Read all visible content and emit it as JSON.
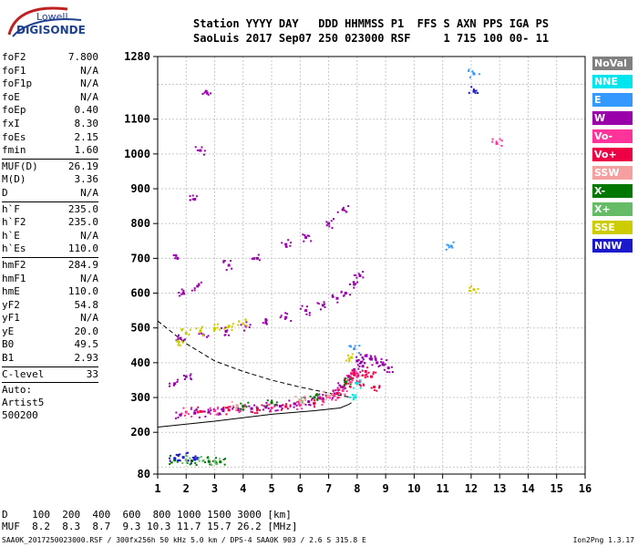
{
  "logo": {
    "line1": "Lowell",
    "line2": "DIGISONDE"
  },
  "header": {
    "line1": "Station YYYY DAY   DDD HHMMSS P1  FFS S AXN PPS IGA PS",
    "line2": "SaoLuis 2017 Sep07 250 023000 RSF     1 715 100 00- 11"
  },
  "params": [
    {
      "label": "foF2",
      "value": "7.800"
    },
    {
      "label": "foF1",
      "value": "N/A"
    },
    {
      "label": "foF1p",
      "value": "N/A"
    },
    {
      "label": "foE",
      "value": "N/A"
    },
    {
      "label": "foEp",
      "value": "0.40"
    },
    {
      "label": "fxI",
      "value": "8.30"
    },
    {
      "label": "foEs",
      "value": "2.15"
    },
    {
      "label": "fmin",
      "value": "1.60"
    },
    {
      "sep": true
    },
    {
      "label": "MUF(D)",
      "value": "26.19"
    },
    {
      "label": "M(D)",
      "value": "3.36"
    },
    {
      "label": "D",
      "value": "N/A"
    },
    {
      "sep": true
    },
    {
      "label": "h`F",
      "value": "235.0"
    },
    {
      "label": "h`F2",
      "value": "235.0"
    },
    {
      "label": "h`E",
      "value": "N/A"
    },
    {
      "label": "h`Es",
      "value": "110.0"
    },
    {
      "sep": true
    },
    {
      "label": "hmF2",
      "value": "284.9"
    },
    {
      "label": "hmF1",
      "value": "N/A"
    },
    {
      "label": "hmE",
      "value": "110.0"
    },
    {
      "label": "yF2",
      "value": "54.8"
    },
    {
      "label": "yF1",
      "value": "N/A"
    },
    {
      "label": "yE",
      "value": "20.0"
    },
    {
      "label": "B0",
      "value": "49.5"
    },
    {
      "label": "B1",
      "value": "2.93"
    },
    {
      "sep": true
    },
    {
      "label": "C-level",
      "value": "33"
    },
    {
      "sep": true
    }
  ],
  "auto": {
    "line1": "Auto:",
    "line2": "Artist5",
    "line3": "500200"
  },
  "legend": [
    {
      "label": "NoVal",
      "color": "#808080"
    },
    {
      "label": "NNE",
      "color": "#00e5ee"
    },
    {
      "label": "E",
      "color": "#3399ff"
    },
    {
      "label": "W",
      "color": "#9900aa"
    },
    {
      "label": "Vo-",
      "color": "#ff3399"
    },
    {
      "label": "Vo+",
      "color": "#ee0044"
    },
    {
      "label": "SSW",
      "color": "#f4a0a0"
    },
    {
      "label": "X-",
      "color": "#007700"
    },
    {
      "label": "X+",
      "color": "#66bb66"
    },
    {
      "label": "SSE",
      "color": "#cccc00"
    },
    {
      "label": "NNW",
      "color": "#1a1acc"
    }
  ],
  "bottom": {
    "d_row": "D    100  200  400  600  800 1000 1500 3000 [km]",
    "muf_row": "MUF  8.2  8.3  8.7  9.3 10.3 11.7 15.7 26.2 [MHz]"
  },
  "footer": "SAA0K_2017250023000.RSF / 300fx256h 50 kHz 5.0 km / DPS-4 SAA0K 903 / 2.6 S 315.8 E",
  "version": "Ion2Png 1.3.17",
  "chart_data": {
    "type": "scatter",
    "xlim": [
      1,
      16
    ],
    "ylim": [
      80,
      1280
    ],
    "xticks": [
      1,
      2,
      3,
      4,
      5,
      6,
      7,
      8,
      9,
      10,
      11,
      12,
      13,
      14,
      15,
      16
    ],
    "yticks": [
      80,
      200,
      300,
      400,
      500,
      600,
      700,
      800,
      900,
      1000,
      1100,
      1280
    ],
    "grid": true,
    "curves": {
      "profile": [
        [
          1.0,
          215
        ],
        [
          3.0,
          232
        ],
        [
          5.0,
          252
        ],
        [
          6.5,
          262
        ],
        [
          7.4,
          270
        ],
        [
          7.7,
          280
        ],
        [
          7.8,
          285
        ]
      ],
      "dashed": [
        [
          1.0,
          520
        ],
        [
          2.0,
          455
        ],
        [
          3.0,
          405
        ],
        [
          4.0,
          375
        ],
        [
          5.0,
          350
        ],
        [
          6.0,
          330
        ],
        [
          7.0,
          313
        ],
        [
          7.8,
          300
        ]
      ]
    },
    "series": [
      {
        "name": "W",
        "points": [
          [
            1.8,
            250
          ],
          [
            2.3,
            255
          ],
          [
            2.8,
            258
          ],
          [
            3.3,
            262
          ],
          [
            3.8,
            265
          ],
          [
            4.3,
            268
          ],
          [
            4.8,
            272
          ],
          [
            5.3,
            275
          ],
          [
            5.8,
            282
          ],
          [
            6.3,
            288
          ],
          [
            6.8,
            296
          ],
          [
            7.2,
            310
          ],
          [
            7.5,
            330
          ],
          [
            7.7,
            360
          ],
          [
            7.9,
            380
          ],
          [
            8.0,
            405
          ],
          [
            8.2,
            390
          ],
          [
            8.3,
            420
          ],
          [
            8.5,
            410
          ],
          [
            8.7,
            400
          ],
          [
            8.9,
            395
          ],
          [
            9.1,
            385
          ],
          [
            1.8,
            470
          ],
          [
            2.6,
            480
          ],
          [
            3.4,
            490
          ],
          [
            4.1,
            505
          ],
          [
            4.8,
            515
          ],
          [
            5.5,
            530
          ],
          [
            6.2,
            550
          ],
          [
            6.8,
            565
          ],
          [
            7.3,
            585
          ],
          [
            7.6,
            600
          ],
          [
            7.9,
            625
          ],
          [
            8.1,
            650
          ],
          [
            1.6,
            340
          ],
          [
            2.0,
            360
          ],
          [
            1.9,
            600
          ],
          [
            2.4,
            620
          ],
          [
            3.5,
            680
          ],
          [
            4.5,
            700
          ],
          [
            5.5,
            740
          ],
          [
            6.2,
            760
          ],
          [
            7.0,
            800
          ],
          [
            7.5,
            840
          ],
          [
            1.7,
            700
          ],
          [
            2.3,
            870
          ],
          [
            2.5,
            1010
          ],
          [
            2.7,
            1180
          ]
        ]
      },
      {
        "name": "Vo-",
        "points": [
          [
            2.0,
            258
          ],
          [
            3.0,
            262
          ],
          [
            4.0,
            266
          ],
          [
            5.0,
            270
          ],
          [
            6.0,
            278
          ],
          [
            6.8,
            290
          ],
          [
            7.2,
            305
          ],
          [
            7.5,
            320
          ],
          [
            7.7,
            350
          ],
          [
            7.8,
            370
          ],
          [
            8.0,
            360
          ],
          [
            12.9,
            1030
          ]
        ]
      },
      {
        "name": "Vo+",
        "points": [
          [
            2.5,
            260
          ],
          [
            3.5,
            264
          ],
          [
            4.5,
            268
          ],
          [
            5.5,
            274
          ],
          [
            6.5,
            284
          ],
          [
            7.3,
            312
          ],
          [
            7.6,
            340
          ],
          [
            7.9,
            365
          ],
          [
            8.1,
            345
          ],
          [
            8.3,
            375
          ],
          [
            8.5,
            360
          ],
          [
            8.6,
            330
          ]
        ]
      },
      {
        "name": "X-",
        "points": [
          [
            1.6,
            120
          ],
          [
            2.2,
            118
          ],
          [
            2.8,
            116
          ],
          [
            3.2,
            115
          ],
          [
            4.0,
            275
          ],
          [
            5.0,
            285
          ],
          [
            6.5,
            300
          ],
          [
            7.6,
            345
          ]
        ]
      },
      {
        "name": "X+",
        "points": [
          [
            2.0,
            120
          ],
          [
            2.6,
            118
          ],
          [
            3.0,
            117
          ],
          [
            6.0,
            292
          ]
        ]
      },
      {
        "name": "SSE",
        "points": [
          [
            2.0,
            485
          ],
          [
            2.5,
            490
          ],
          [
            3.0,
            498
          ],
          [
            3.5,
            505
          ],
          [
            4.0,
            512
          ],
          [
            1.7,
            462
          ],
          [
            12.1,
            610
          ],
          [
            7.8,
            415
          ]
        ]
      },
      {
        "name": "E",
        "points": [
          [
            12.1,
            1230
          ],
          [
            11.3,
            735
          ],
          [
            7.9,
            440
          ]
        ]
      },
      {
        "name": "NNW",
        "points": [
          [
            1.6,
            125
          ],
          [
            1.9,
            128
          ],
          [
            2.3,
            122
          ],
          [
            12.1,
            1180
          ]
        ]
      },
      {
        "name": "SSW",
        "points": [
          [
            3.8,
            275
          ],
          [
            6.0,
            290
          ],
          [
            7.0,
            305
          ]
        ]
      },
      {
        "name": "NNE",
        "points": [
          [
            7.9,
            300
          ],
          [
            8.0,
            340
          ]
        ]
      }
    ]
  }
}
